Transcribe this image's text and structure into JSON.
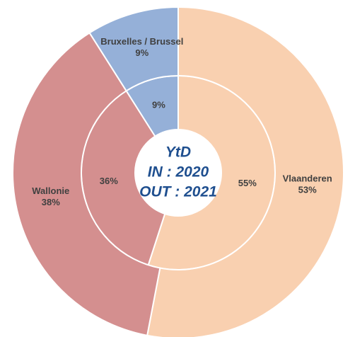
{
  "chart_data": {
    "type": "donut",
    "title": "YtD",
    "categories": [
      "Vlaanderen",
      "Wallonie",
      "Bruxelles / Brussel"
    ],
    "colors": [
      "#f9d0b0",
      "#d48f8f",
      "#95b0d8"
    ],
    "series": [
      {
        "name": "IN : 2020",
        "values": [
          55,
          36,
          9
        ],
        "value_labels": [
          "55%",
          "36%",
          "9%"
        ]
      },
      {
        "name": "OUT : 2021",
        "values": [
          53,
          38,
          9
        ],
        "value_labels": [
          "53%",
          "38%",
          "9%"
        ]
      }
    ]
  }
}
